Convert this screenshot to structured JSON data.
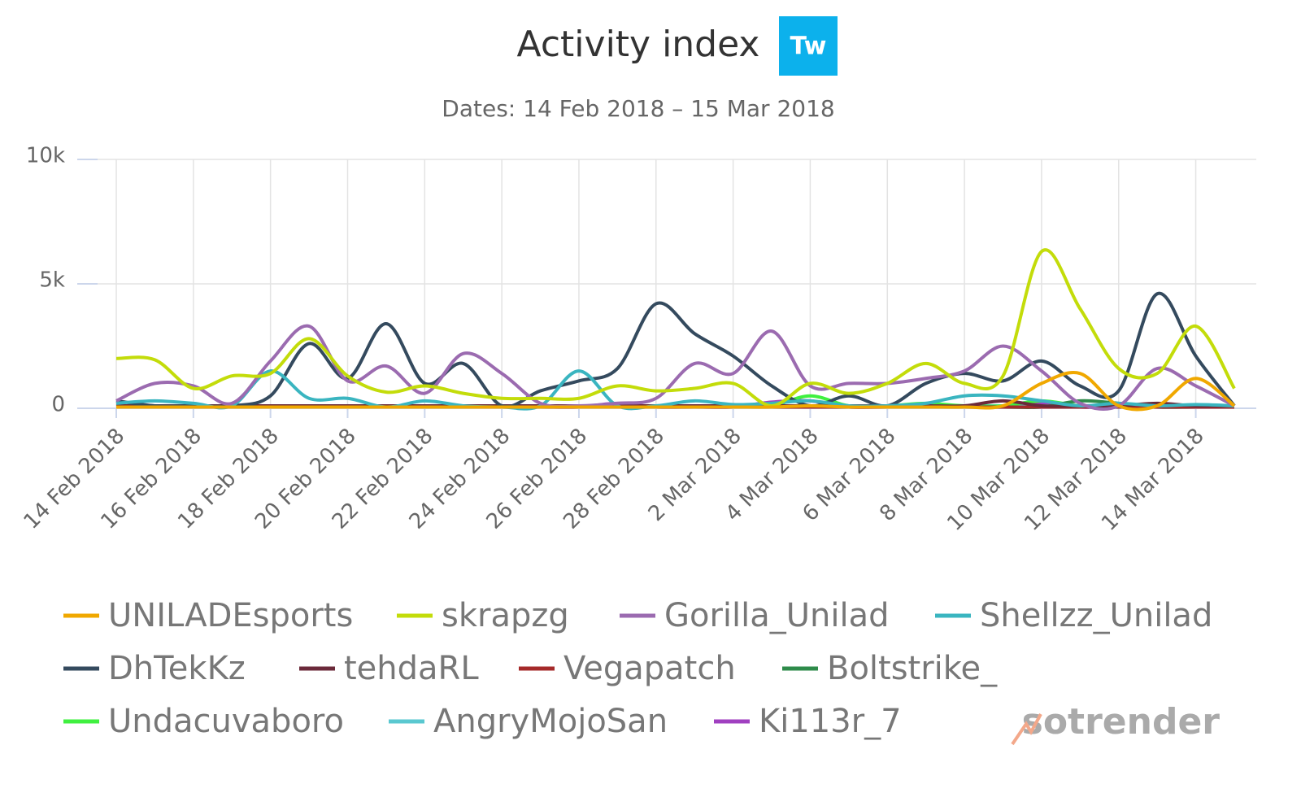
{
  "chart_data": {
    "type": "line",
    "title": "Activity index",
    "badge": "Tw",
    "subtitle": "Dates: 14 Feb 2018 – 15 Mar 2018",
    "watermark": "sotrender",
    "categories": [
      "14 Feb 2018",
      null,
      "16 Feb 2018",
      null,
      "18 Feb 2018",
      null,
      "20 Feb 2018",
      null,
      "22 Feb 2018",
      null,
      "24 Feb 2018",
      null,
      "26 Feb 2018",
      null,
      "28 Feb 2018",
      null,
      "2 Mar 2018",
      null,
      "4 Mar 2018",
      null,
      "6 Mar 2018",
      null,
      "8 Mar 2018",
      null,
      "10 Mar 2018",
      null,
      "12 Mar 2018",
      null,
      "14 Mar 2018",
      null
    ],
    "ylim": [
      0,
      10000
    ],
    "yticks": [
      0,
      {
        "value": 5000,
        "label": "5k"
      },
      {
        "value": 10000,
        "label": "10k"
      }
    ],
    "grid": true,
    "legend": "bottom",
    "series": [
      {
        "name": "UNILADEsports",
        "color": "#f0a800",
        "values": [
          50,
          50,
          50,
          50,
          50,
          50,
          50,
          50,
          50,
          50,
          50,
          50,
          50,
          50,
          50,
          50,
          50,
          50,
          100,
          50,
          50,
          50,
          50,
          100,
          1000,
          1400,
          100,
          100,
          1200,
          100
        ]
      },
      {
        "name": "skrapzg",
        "color": "#c3dc0a",
        "values": [
          2000,
          1950,
          800,
          1300,
          1400,
          2800,
          1300,
          650,
          900,
          600,
          400,
          400,
          400,
          900,
          700,
          800,
          1000,
          100,
          1000,
          600,
          1000,
          1800,
          1000,
          1300,
          6300,
          4000,
          1600,
          1400,
          3300,
          800
        ]
      },
      {
        "name": "Gorilla_Unilad",
        "color": "#9b6bb0",
        "values": [
          300,
          1000,
          900,
          200,
          1900,
          3300,
          1100,
          1700,
          600,
          2200,
          1400,
          200,
          100,
          200,
          400,
          1800,
          1400,
          3100,
          900,
          1000,
          1000,
          1200,
          1500,
          2500,
          1500,
          200,
          100,
          1600,
          900,
          100
        ]
      },
      {
        "name": "Shellzz_Unilad",
        "color": "#3ab5c0",
        "values": [
          200,
          300,
          200,
          100,
          1500,
          400,
          400,
          50,
          300,
          100,
          50,
          100,
          1500,
          100,
          100,
          300,
          150,
          200,
          300,
          100,
          100,
          200,
          500,
          500,
          300,
          100,
          200,
          100,
          150,
          100
        ]
      },
      {
        "name": "DhTekKz",
        "color": "#344a5e",
        "values": [
          300,
          100,
          100,
          100,
          500,
          2600,
          1200,
          3400,
          1000,
          1800,
          100,
          700,
          1100,
          1600,
          4200,
          3000,
          2100,
          900,
          100,
          500,
          100,
          1000,
          1400,
          1100,
          1900,
          900,
          700,
          4600,
          2100,
          100
        ]
      },
      {
        "name": "tehdaRL",
        "color": "#6b2a3a",
        "values": [
          100,
          100,
          100,
          100,
          100,
          100,
          100,
          100,
          100,
          100,
          100,
          100,
          100,
          100,
          100,
          100,
          100,
          100,
          100,
          100,
          100,
          100,
          100,
          300,
          100,
          100,
          100,
          200,
          100,
          100
        ]
      },
      {
        "name": "Vegapatch",
        "color": "#a52a2a",
        "values": [
          50,
          50,
          50,
          50,
          50,
          50,
          50,
          50,
          50,
          50,
          50,
          50,
          50,
          50,
          50,
          50,
          50,
          50,
          50,
          50,
          50,
          50,
          50,
          50,
          50,
          50,
          50,
          50,
          50,
          50
        ]
      },
      {
        "name": "Boltstrike_",
        "color": "#2e8b4a",
        "values": [
          50,
          50,
          50,
          50,
          50,
          50,
          50,
          50,
          50,
          50,
          50,
          50,
          50,
          50,
          50,
          50,
          50,
          50,
          50,
          50,
          50,
          50,
          50,
          50,
          50,
          300,
          200,
          50,
          50,
          50
        ]
      },
      {
        "name": "Undacuvaboro",
        "color": "#40f040",
        "values": [
          100,
          100,
          100,
          100,
          100,
          100,
          100,
          100,
          100,
          100,
          100,
          100,
          100,
          100,
          100,
          100,
          100,
          100,
          500,
          100,
          100,
          200,
          100,
          100,
          300,
          100,
          100,
          100,
          100,
          100
        ]
      },
      {
        "name": "AngryMojoSan",
        "color": "#5ac8d0",
        "values": [
          100,
          100,
          100,
          100,
          100,
          100,
          100,
          100,
          100,
          100,
          100,
          100,
          100,
          100,
          100,
          100,
          100,
          100,
          100,
          100,
          100,
          100,
          100,
          100,
          100,
          100,
          100,
          100,
          100,
          100
        ]
      },
      {
        "name": "Ki113r_7",
        "color": "#a040c0",
        "values": [
          50,
          50,
          50,
          50,
          50,
          50,
          50,
          50,
          50,
          50,
          50,
          50,
          50,
          200,
          50,
          50,
          50,
          250,
          300,
          50,
          50,
          50,
          50,
          50,
          200,
          50,
          50,
          50,
          50,
          50
        ]
      }
    ]
  }
}
